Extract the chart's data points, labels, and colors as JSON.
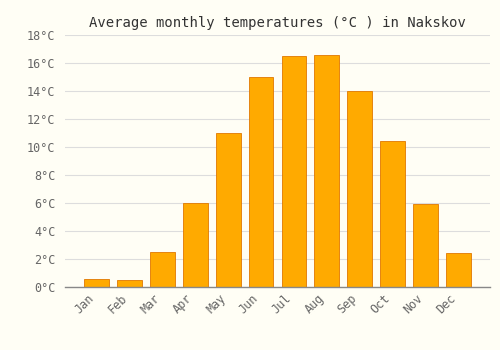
{
  "title": "Average monthly temperatures (°C ) in Nakskov",
  "months": [
    "Jan",
    "Feb",
    "Mar",
    "Apr",
    "May",
    "Jun",
    "Jul",
    "Aug",
    "Sep",
    "Oct",
    "Nov",
    "Dec"
  ],
  "temperatures": [
    0.6,
    0.5,
    2.5,
    6.0,
    11.0,
    15.0,
    16.5,
    16.6,
    14.0,
    10.4,
    5.9,
    2.4
  ],
  "bar_color": "#FFAA00",
  "bar_edge_color": "#E07800",
  "ylim": [
    0,
    18
  ],
  "yticks": [
    0,
    2,
    4,
    6,
    8,
    10,
    12,
    14,
    16,
    18
  ],
  "ytick_labels": [
    "0°C",
    "2°C",
    "4°C",
    "6°C",
    "8°C",
    "10°C",
    "12°C",
    "14°C",
    "16°C",
    "18°C"
  ],
  "background_color": "#FFFEF5",
  "grid_color": "#DDDDDD",
  "title_fontsize": 10,
  "tick_fontsize": 8.5,
  "font_family": "monospace",
  "bar_width": 0.75
}
